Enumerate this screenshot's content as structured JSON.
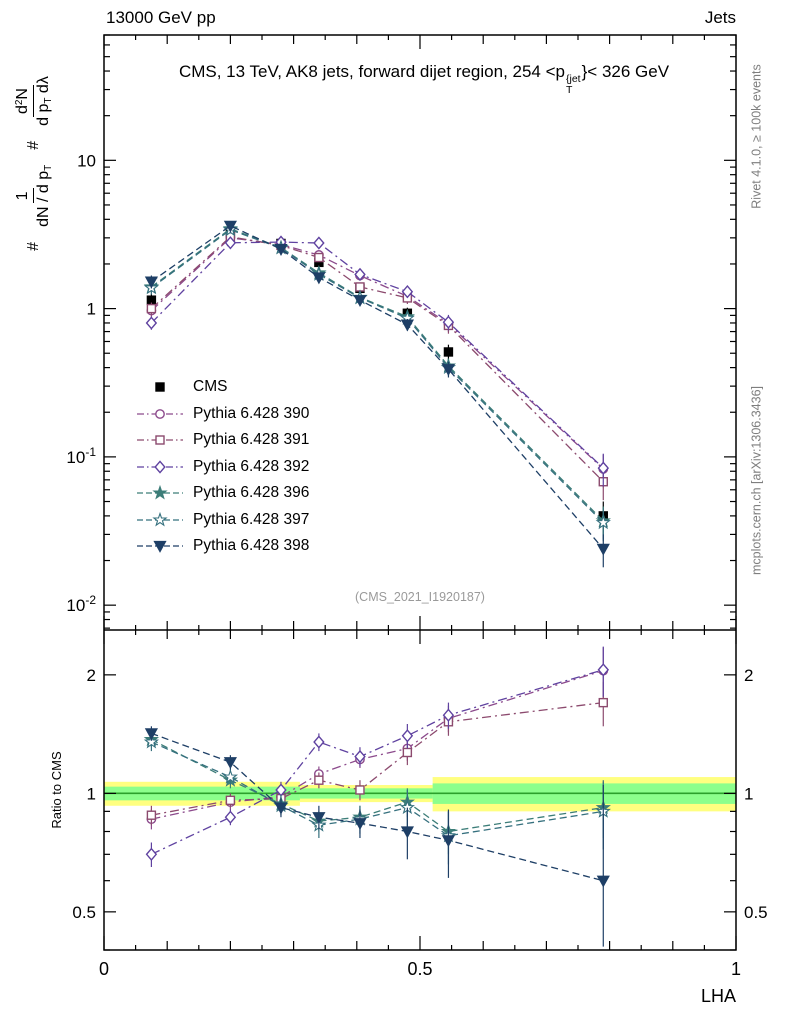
{
  "header": {
    "left": "13000 GeV pp",
    "right": "Jets"
  },
  "title": {
    "pre": "CMS, 13 TeV, AK8 jets, forward dijet region, 254 <p",
    "sup": "{jet",
    "sub": "T",
    "post": "}< 326 GeV"
  },
  "ylabel_main": {
    "hash1": "#",
    "f1_num": "1",
    "f1_den_pre": "dN / d p",
    "f1_den_sub": "T",
    "hash2": "#",
    "f2_num_pre": "d",
    "f2_num_sup": "2",
    "f2_num_post": "N",
    "f2_den_pre": "d p",
    "f2_den_sub": "T",
    "f2_den_post": " dλ"
  },
  "ylabel_ratio": "Ratio to CMS",
  "xlabel": "LHA",
  "side_texts": {
    "rivet": "Rivet 4.1.0, ≥ 100k events",
    "mcplots": "mcplots.cern.ch [arXiv:1306.3436]"
  },
  "watermark": "(CMS_2021_I1920187)",
  "chart_data": {
    "type": "line",
    "title": "CMS, 13 TeV, AK8 jets, forward dijet region, 254 < pT(jet) < 326 GeV",
    "xlabel": "LHA",
    "ylabel_main": "# 1/(dN/dpT) d2N/(dpT dLambda)",
    "ylabel_ratio": "Ratio to CMS",
    "xlim": [
      0,
      1
    ],
    "x": [
      0.075,
      0.2,
      0.28,
      0.34,
      0.405,
      0.48,
      0.545,
      0.79
    ],
    "xticks": [
      {
        "v": 0,
        "label": "0"
      },
      {
        "v": 0.5,
        "label": "0.5"
      },
      {
        "v": 1,
        "label": "1"
      }
    ],
    "main": {
      "scale": "log",
      "ylim": [
        0.0068,
        70
      ],
      "yticks": [
        {
          "v": 10,
          "b": "10",
          "e": ""
        },
        {
          "v": 1,
          "b": "1",
          "e": ""
        },
        {
          "v": 0.1,
          "b": "10",
          "e": "-1"
        },
        {
          "v": 0.01,
          "b": "10",
          "e": "-2"
        }
      ],
      "yerr_frac": [
        0.1,
        0.05,
        0.05,
        0.06,
        0.07,
        0.09,
        0.12,
        0.25
      ]
    },
    "ratio": {
      "scale": "log",
      "ylim": [
        0.4,
        2.6
      ],
      "yticks": [
        {
          "v": 2,
          "label": "2"
        },
        {
          "v": 1,
          "label": "1"
        },
        {
          "v": 0.5,
          "label": "0.5"
        }
      ],
      "band": [
        {
          "x0": 0,
          "x1": 0.31,
          "yellow": [
            0.93,
            1.07
          ],
          "green": [
            0.96,
            1.04
          ]
        },
        {
          "x0": 0.31,
          "x1": 0.52,
          "yellow": [
            0.95,
            1.05
          ],
          "green": [
            0.97,
            1.03
          ]
        },
        {
          "x0": 0.52,
          "x1": 1,
          "yellow": [
            0.9,
            1.1
          ],
          "green": [
            0.94,
            1.06
          ]
        }
      ],
      "centerline": 1
    },
    "colors": {
      "band_yellow": "#ffff80",
      "band_green": "#8cff8c",
      "band_line": "#2ca02c",
      "frame": "#000000"
    },
    "legend_position": "middle-left",
    "series": [
      {
        "id": "cms",
        "label": "CMS",
        "marker": "square",
        "filled": true,
        "color": "#000000",
        "dash": "none",
        "values": [
          1.14,
          3.2,
          2.75,
          2.05,
          1.37,
          0.93,
          0.51,
          0.04
        ]
      },
      {
        "id": "py390",
        "label": "Pythia 6.428 390",
        "marker": "circle",
        "filled": false,
        "color": "#8c4a8c",
        "dash": "dashdot",
        "values": [
          0.97,
          3.0,
          2.7,
          2.3,
          1.67,
          1.21,
          0.79,
          0.083
        ],
        "ratio": [
          0.86,
          0.95,
          0.98,
          1.12,
          1.22,
          1.3,
          1.55,
          2.05
        ],
        "ratio_err": [
          0.05,
          0.04,
          0.04,
          0.05,
          0.06,
          0.09,
          0.12,
          0.3
        ]
      },
      {
        "id": "py391",
        "label": "Pythia 6.428 391",
        "marker": "square",
        "filled": false,
        "color": "#8c4a6e",
        "dash": "dashdot",
        "values": [
          1.0,
          3.05,
          2.67,
          2.21,
          1.4,
          1.18,
          0.77,
          0.068
        ],
        "ratio": [
          0.88,
          0.96,
          0.97,
          1.08,
          1.02,
          1.27,
          1.52,
          1.7
        ],
        "ratio_err": [
          0.05,
          0.04,
          0.04,
          0.05,
          0.06,
          0.09,
          0.12,
          0.22
        ]
      },
      {
        "id": "py392",
        "label": "Pythia 6.428 392",
        "marker": "diamond",
        "filled": false,
        "color": "#5f42a0",
        "dash": "dashdot",
        "values": [
          0.8,
          2.78,
          2.81,
          2.77,
          1.7,
          1.3,
          0.81,
          0.084
        ],
        "ratio": [
          0.7,
          0.87,
          1.02,
          1.35,
          1.24,
          1.4,
          1.58,
          2.06
        ],
        "ratio_err": [
          0.05,
          0.04,
          0.05,
          0.07,
          0.07,
          0.1,
          0.12,
          0.3
        ]
      },
      {
        "id": "py396",
        "label": "Pythia 6.428 396",
        "marker": "star",
        "filled": true,
        "color": "#3c7d78",
        "dash": "dashed",
        "values": [
          1.4,
          3.45,
          2.58,
          1.74,
          1.19,
          0.88,
          0.41,
          0.037
        ],
        "ratio": [
          1.37,
          1.08,
          0.94,
          0.85,
          0.87,
          0.95,
          0.8,
          0.92
        ],
        "ratio_err": [
          0.06,
          0.05,
          0.05,
          0.05,
          0.06,
          0.08,
          0.1,
          0.15
        ]
      },
      {
        "id": "py397",
        "label": "Pythia 6.428 397",
        "marker": "star",
        "filled": false,
        "color": "#35707e",
        "dash": "dashed",
        "values": [
          1.38,
          3.4,
          2.56,
          1.7,
          1.18,
          0.86,
          0.4,
          0.036
        ],
        "ratio": [
          1.35,
          1.1,
          0.93,
          0.83,
          0.86,
          0.92,
          0.78,
          0.9
        ],
        "ratio_err": [
          0.07,
          0.05,
          0.05,
          0.06,
          0.07,
          0.1,
          0.12,
          0.18
        ]
      },
      {
        "id": "py398",
        "label": "Pythia 6.428 398",
        "marker": "tri-down",
        "filled": true,
        "color": "#1e3f66",
        "dash": "dashed",
        "values": [
          1.52,
          3.62,
          2.52,
          1.62,
          1.14,
          0.78,
          0.39,
          0.024
        ],
        "ratio": [
          1.42,
          1.2,
          0.92,
          0.87,
          0.84,
          0.8,
          0.76,
          0.6
        ],
        "ratio_err": [
          0.06,
          0.05,
          0.05,
          0.06,
          0.07,
          0.12,
          0.15,
          0.45
        ]
      }
    ]
  }
}
